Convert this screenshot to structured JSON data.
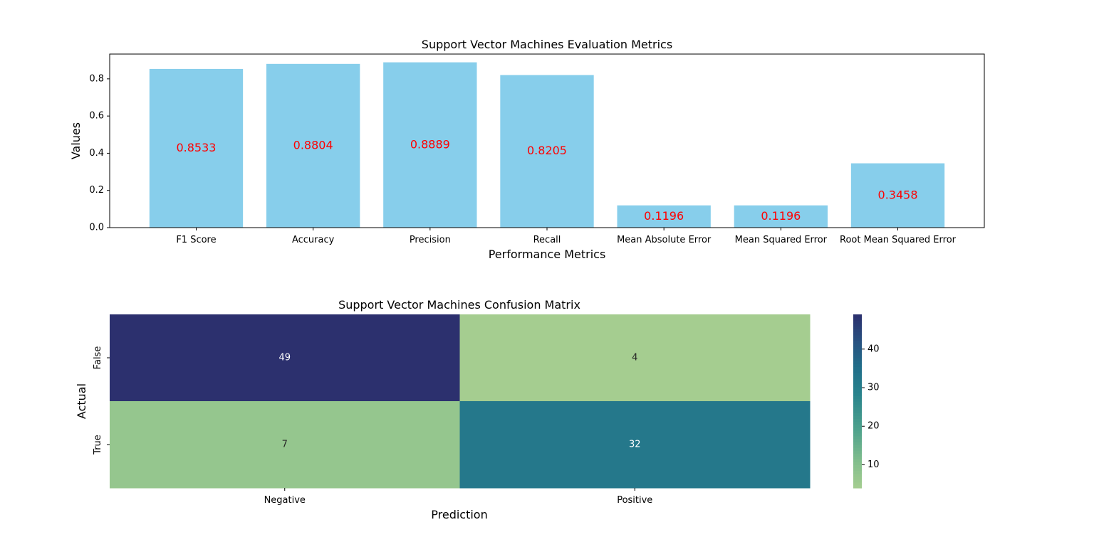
{
  "chart_data": [
    {
      "type": "bar",
      "title": "Support Vector Machines Evaluation Metrics",
      "xlabel": "Performance Metrics",
      "ylabel": "Values",
      "categories": [
        "F1 Score",
        "Accuracy",
        "Precision",
        "Recall",
        "Mean Absolute Error",
        "Mean Squared Error",
        "Root Mean Squared Error"
      ],
      "values": [
        0.8533,
        0.8804,
        0.8889,
        0.8205,
        0.1196,
        0.1196,
        0.3458
      ],
      "value_labels": [
        "0.8533",
        "0.8804",
        "0.8889",
        "0.8205",
        "0.1196",
        "0.1196",
        "0.3458"
      ],
      "ylim": [
        0,
        0.9333
      ],
      "yticks": [
        0.0,
        0.2,
        0.4,
        0.6,
        0.8
      ],
      "ytick_labels": [
        "0.0",
        "0.2",
        "0.4",
        "0.6",
        "0.8"
      ],
      "bar_color": "#87ceeb",
      "label_color": "#ff0000",
      "grid": false
    },
    {
      "type": "heatmap",
      "title": "Support Vector Machines Confusion Matrix",
      "xlabel": "Prediction",
      "ylabel": "Actual",
      "x_categories": [
        "Negative",
        "Positive"
      ],
      "y_categories": [
        "False",
        "True"
      ],
      "values": [
        [
          49,
          4
        ],
        [
          7,
          32
        ]
      ],
      "colormap": "crest",
      "vmin": 4,
      "vmax": 49,
      "colorbar_ticks": [
        10,
        20,
        30,
        40
      ],
      "colorbar_tick_labels": [
        "10",
        "20",
        "30",
        "40"
      ]
    }
  ]
}
